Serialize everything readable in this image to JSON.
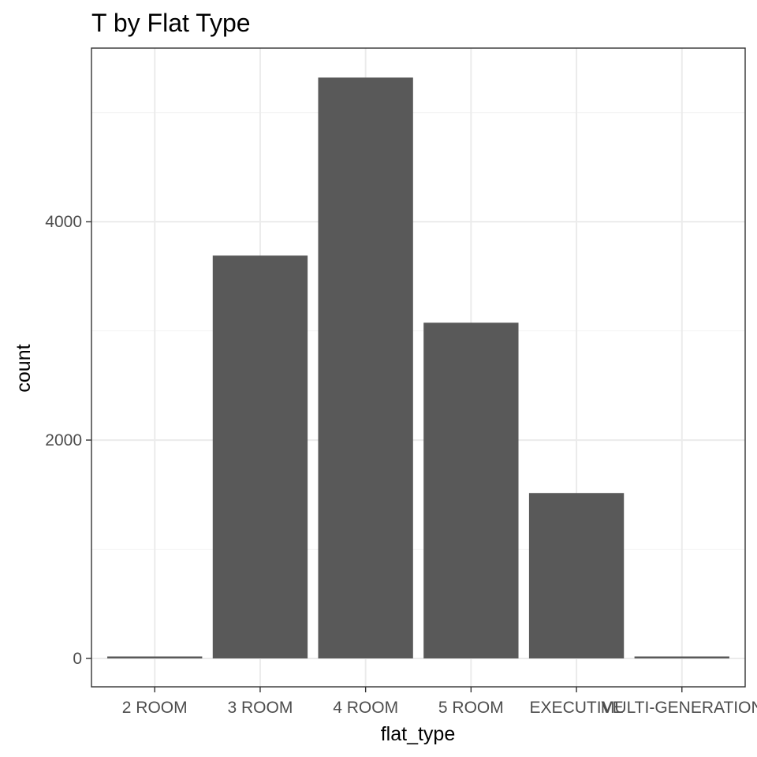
{
  "chart_data": {
    "type": "bar",
    "title": "T by Flat Type",
    "xlabel": "flat_type",
    "ylabel": "count",
    "categories": [
      "2 ROOM",
      "3 ROOM",
      "4 ROOM",
      "5 ROOM",
      "EXECUTIVE",
      "MULTI-GENERATION"
    ],
    "values": [
      18,
      3690,
      5320,
      3075,
      1515,
      18
    ],
    "yticks": [
      0,
      2000,
      4000
    ],
    "ytick_labels": [
      "0",
      "2000",
      "4000"
    ],
    "ylim": [
      -260,
      5590
    ],
    "grid": true,
    "legend": "none",
    "colors": {
      "bar": "#595959",
      "grid_major": "#ebebeb",
      "grid_minor": "#f3f3f3",
      "border": "#333333",
      "tick_text": "#4d4d4d",
      "background": "#ffffff"
    }
  }
}
